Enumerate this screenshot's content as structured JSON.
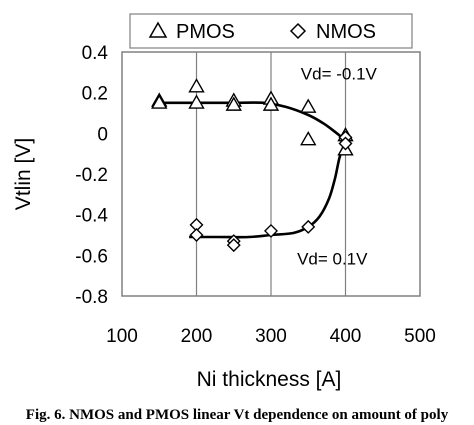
{
  "chart_data": {
    "type": "scatter",
    "xlabel": "Ni thickness [A]",
    "ylabel": "Vtlin [V]",
    "xlim": [
      100,
      500
    ],
    "ylim": [
      -0.8,
      0.4
    ],
    "xticks": [
      100,
      200,
      300,
      400,
      500
    ],
    "yticks": [
      0.4,
      0.2,
      0,
      -0.2,
      -0.4,
      -0.6,
      -0.8
    ],
    "ytick_labels": [
      "0.4",
      "0.2",
      "0",
      "-0.2",
      "-0.4",
      "-0.6",
      "-0.8"
    ],
    "xtick_labels": [
      "100",
      "200",
      "300",
      "400",
      "500"
    ],
    "grid": "vertical",
    "legend_position": "top",
    "series": [
      {
        "name": "PMOS",
        "marker": "triangle",
        "points": [
          [
            150,
            0.16
          ],
          [
            150,
            0.15
          ],
          [
            200,
            0.23
          ],
          [
            200,
            0.15
          ],
          [
            250,
            0.16
          ],
          [
            250,
            0.14
          ],
          [
            300,
            0.17
          ],
          [
            300,
            0.14
          ],
          [
            350,
            0.13
          ],
          [
            350,
            -0.03
          ],
          [
            400,
            -0.01
          ],
          [
            400,
            -0.08
          ]
        ],
        "fit": [
          [
            150,
            0.15
          ],
          [
            200,
            0.15
          ],
          [
            250,
            0.15
          ],
          [
            290,
            0.15
          ],
          [
            320,
            0.13
          ],
          [
            350,
            0.09
          ],
          [
            370,
            0.05
          ],
          [
            385,
            0.01
          ],
          [
            395,
            -0.02
          ],
          [
            400,
            -0.04
          ]
        ]
      },
      {
        "name": "NMOS",
        "marker": "diamond",
        "points": [
          [
            200,
            -0.45
          ],
          [
            200,
            -0.5
          ],
          [
            250,
            -0.53
          ],
          [
            250,
            -0.55
          ],
          [
            300,
            -0.48
          ],
          [
            350,
            -0.46
          ],
          [
            400,
            -0.02
          ],
          [
            400,
            -0.05
          ]
        ],
        "fit": [
          [
            190,
            -0.51
          ],
          [
            230,
            -0.51
          ],
          [
            270,
            -0.51
          ],
          [
            300,
            -0.5
          ],
          [
            330,
            -0.49
          ],
          [
            350,
            -0.46
          ],
          [
            365,
            -0.41
          ],
          [
            378,
            -0.32
          ],
          [
            386,
            -0.22
          ],
          [
            392,
            -0.12
          ],
          [
            398,
            -0.06
          ],
          [
            402,
            -0.04
          ]
        ]
      }
    ],
    "annotations": [
      {
        "text": "Vd= -0.1V",
        "x": 340,
        "y": 0.265
      },
      {
        "text": "Vd= 0.1V",
        "x": 335,
        "y": -0.645
      }
    ]
  },
  "caption": "Fig. 6. NMOS and PMOS linear Vt dependence on amount of poly",
  "colors": {
    "line": "#000000",
    "grid": "#808080",
    "background": "#ffffff"
  }
}
